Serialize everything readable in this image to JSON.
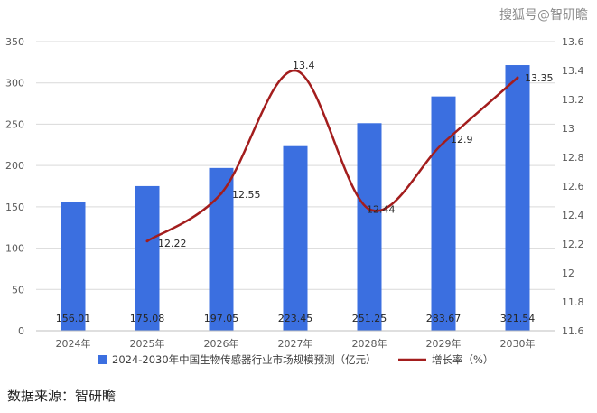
{
  "watermark": "搜狐号@智研瞻",
  "source": "数据来源：智研瞻",
  "colors": {
    "bar": "#3b6fe0",
    "line": "#a31d1d",
    "grid": "#d9d9d9",
    "text": "#595959"
  },
  "chart_data": {
    "type": "bar",
    "title": "",
    "categories": [
      "2024年",
      "2025年",
      "2026年",
      "2027年",
      "2028年",
      "2029年",
      "2030年"
    ],
    "y_left": {
      "min": 0,
      "max": 350,
      "step": 50,
      "ticks": [
        "0",
        "50",
        "100",
        "150",
        "200",
        "250",
        "300",
        "350"
      ]
    },
    "y_right": {
      "min": 11.6,
      "max": 13.6,
      "step": 0.2,
      "ticks": [
        "11.6",
        "11.8",
        "12",
        "12.2",
        "12.4",
        "12.6",
        "12.8",
        "13",
        "13.2",
        "13.4",
        "13.6"
      ]
    },
    "grid": true,
    "legend_position": "bottom",
    "series": [
      {
        "name": "2024-2030年中国生物传感器行业市场规模预测（亿元）",
        "type": "bar",
        "axis": "left",
        "values": [
          156.01,
          175.08,
          197.05,
          223.45,
          251.25,
          283.67,
          321.54
        ],
        "labels": [
          "156.01",
          "175.08",
          "197.05",
          "223.45",
          "251.25",
          "283.67",
          "321.54"
        ]
      },
      {
        "name": "增长率（%）",
        "type": "line",
        "axis": "right",
        "values": [
          null,
          12.22,
          12.55,
          13.4,
          12.44,
          12.9,
          13.35
        ],
        "labels": [
          "",
          "12.22",
          "12.55",
          "13.4",
          "12.44",
          "12.9",
          "13.35"
        ]
      }
    ]
  }
}
